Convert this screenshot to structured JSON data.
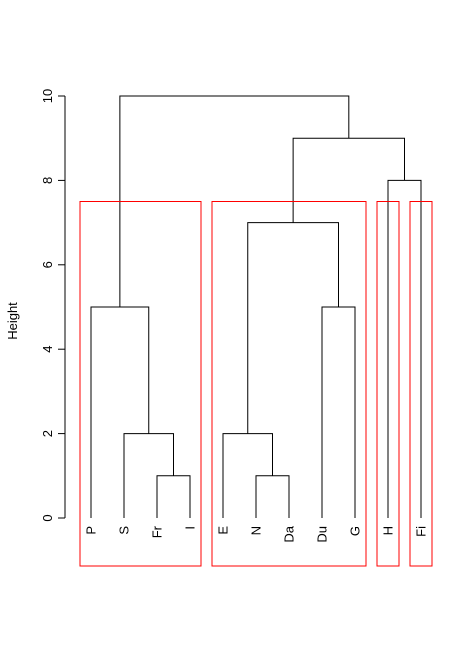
{
  "chart_data": {
    "type": "dendrogram",
    "ylabel": "Height",
    "ylim": [
      0,
      10
    ],
    "yticks": [
      0,
      2,
      4,
      6,
      8,
      10
    ],
    "leaves": [
      "P",
      "S",
      "Fr",
      "I",
      "E",
      "N",
      "Da",
      "Du",
      "G",
      "H",
      "Fi"
    ],
    "merges": [
      {
        "left": "Fr",
        "right": "I",
        "height": 1
      },
      {
        "left": "N",
        "right": "Da",
        "height": 1
      },
      {
        "left": "S",
        "right": "Fr+I",
        "height": 2
      },
      {
        "left": "E",
        "right": "N+Da",
        "height": 2
      },
      {
        "left": "P",
        "right": "S+Fr+I",
        "height": 5
      },
      {
        "left": "Du",
        "right": "G",
        "height": 5
      },
      {
        "left": "E+N+Da",
        "right": "Du+G",
        "height": 7
      },
      {
        "left": "H",
        "right": "Fi",
        "height": 8
      },
      {
        "left": "E+N+Da+Du+G",
        "right": "H+Fi",
        "height": 9
      },
      {
        "left": "P+S+Fr+I",
        "right": "E+N+Da+Du+G+H+Fi",
        "height": 10
      }
    ],
    "cluster_boxes": [
      {
        "members": [
          "P",
          "S",
          "Fr",
          "I"
        ],
        "cut_height": 7.5
      },
      {
        "members": [
          "E",
          "N",
          "Da",
          "Du",
          "G"
        ],
        "cut_height": 7.5
      },
      {
        "members": [
          "H"
        ],
        "cut_height": 7.5
      },
      {
        "members": [
          "Fi"
        ],
        "cut_height": 7.5
      }
    ],
    "colors": {
      "branches": "#000000",
      "boxes": "#ff0000"
    }
  }
}
